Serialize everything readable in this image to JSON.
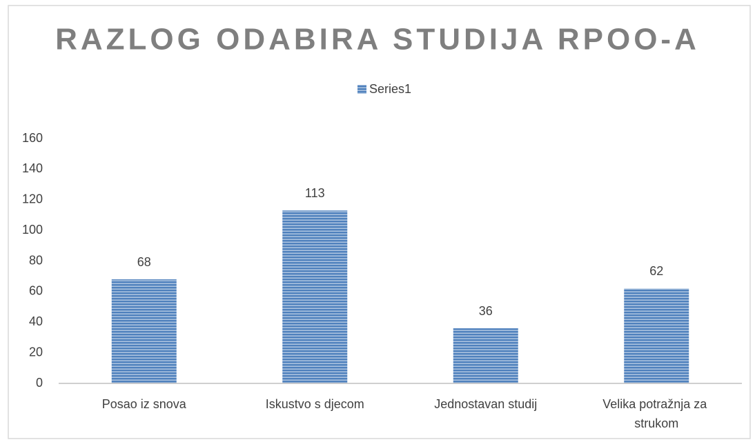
{
  "chart_data": {
    "type": "bar",
    "title": "RAZLOG ODABIRA STUDIJA RPOO-A",
    "categories": [
      "Posao iz snova",
      "Iskustvo s djecom",
      "Jednostavan studij",
      "Velika potražnja za strukom"
    ],
    "series": [
      {
        "name": "Series1",
        "color": "#4f81bd",
        "values": [
          68,
          113,
          36,
          62
        ]
      }
    ],
    "ylim": [
      0,
      160
    ],
    "yticks": [
      0,
      20,
      40,
      60,
      80,
      100,
      120,
      140,
      160
    ],
    "grid": false,
    "legend": "top"
  }
}
